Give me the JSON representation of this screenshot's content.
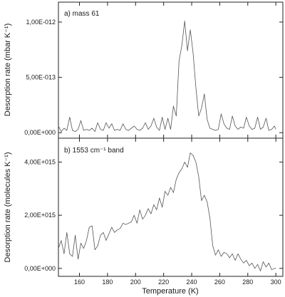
{
  "chart_data": [
    {
      "type": "line",
      "panel_label": "a) mass 61",
      "ylabel": "Desorption rate (mbar K⁻¹)",
      "xlim": [
        145,
        305
      ],
      "ylim": [
        -5e-14,
        1.18e-12
      ],
      "yticks": [
        0,
        5e-13,
        1e-12
      ],
      "ytick_labels": [
        "0,00E+000",
        "5,00E-013",
        "1,00E-012"
      ],
      "series": [
        {
          "x": [
            145,
            147,
            149,
            151,
            153,
            155,
            157,
            159,
            161,
            163,
            165,
            167,
            169,
            171,
            173,
            175,
            177,
            179,
            181,
            183,
            185,
            187,
            189,
            191,
            193,
            195,
            197,
            199,
            201,
            203,
            205,
            207,
            209,
            211,
            213,
            215,
            217,
            219,
            221,
            223,
            225,
            227,
            229,
            231,
            233,
            235,
            237,
            239,
            241,
            243,
            245,
            247,
            249,
            251,
            253,
            255,
            257,
            259,
            261,
            263,
            265,
            267,
            269,
            271,
            273,
            275,
            277,
            279,
            281,
            283,
            285,
            287,
            289,
            291,
            293,
            295,
            297,
            299,
            300
          ],
          "y": [
            0.06,
            0.01,
            0.04,
            0.02,
            0.14,
            0.02,
            0.01,
            0.03,
            0.11,
            0.02,
            0.03,
            0.02,
            0.04,
            0.01,
            0.09,
            0.03,
            0.02,
            0.09,
            0.04,
            0.08,
            0.02,
            0.03,
            0.02,
            0.08,
            0.03,
            0.02,
            0.04,
            0.06,
            0.03,
            0.02,
            0.04,
            0.09,
            0.03,
            0.06,
            0.13,
            0.05,
            0.02,
            0.14,
            0.03,
            0.13,
            0.03,
            0.24,
            0.15,
            0.65,
            0.79,
            1.01,
            0.74,
            0.93,
            0.72,
            0.41,
            0.15,
            0.22,
            0.35,
            0.12,
            0.04,
            0.03,
            0.02,
            0.03,
            0.17,
            0.08,
            0.04,
            0.03,
            0.15,
            0.06,
            0.03,
            0.05,
            0.04,
            0.14,
            0.06,
            0.03,
            0.04,
            0.14,
            0.03,
            0.05,
            0.13,
            0.02,
            0.03,
            0.06,
            0.03
          ]
        }
      ]
    },
    {
      "type": "line",
      "panel_label": "b) 1553 cm⁻¹ band",
      "xlabel": "Temperature (K)",
      "ylabel": "Desorption rate (molecules K⁻¹)",
      "xlim": [
        145,
        305
      ],
      "ylim": [
        -300000000000000.0,
        4900000000000000.0
      ],
      "xticks": [
        160,
        180,
        200,
        220,
        240,
        260,
        280,
        300
      ],
      "yticks": [
        0,
        2000000000000000.0,
        4000000000000000.0
      ],
      "ytick_labels": [
        "0,00E+000",
        "2,00E+015",
        "4,00E+015"
      ],
      "series": [
        {
          "x": [
            145,
            147,
            149,
            151,
            153,
            155,
            157,
            159,
            161,
            163,
            165,
            167,
            169,
            171,
            173,
            175,
            177,
            179,
            181,
            183,
            185,
            187,
            189,
            191,
            193,
            195,
            197,
            199,
            201,
            203,
            205,
            207,
            209,
            211,
            213,
            215,
            217,
            219,
            221,
            223,
            225,
            227,
            229,
            231,
            233,
            235,
            237,
            239,
            241,
            243,
            245,
            247,
            249,
            251,
            253,
            255,
            257,
            259,
            261,
            263,
            265,
            267,
            269,
            271,
            273,
            275,
            277,
            279,
            281,
            283,
            285,
            287,
            289,
            291,
            293,
            295,
            297,
            299,
            300
          ],
          "y": [
            0.75,
            1.05,
            0.55,
            1.35,
            0.55,
            0.45,
            1.25,
            0.35,
            0.95,
            0.75,
            1.05,
            1.55,
            1.6,
            0.7,
            0.85,
            1.25,
            1.35,
            1.05,
            1.3,
            1.55,
            1.35,
            1.45,
            1.5,
            1.7,
            1.65,
            1.7,
            1.75,
            2.0,
            1.7,
            2.2,
            1.85,
            2.0,
            2.25,
            2.05,
            2.4,
            2.2,
            2.65,
            2.3,
            2.9,
            2.75,
            3.05,
            2.85,
            3.35,
            3.6,
            3.75,
            4.0,
            3.8,
            4.35,
            4.25,
            4.0,
            3.45,
            2.55,
            2.75,
            2.5,
            1.9,
            0.85,
            0.5,
            0.7,
            0.45,
            0.6,
            0.55,
            0.4,
            0.55,
            0.3,
            0.55,
            0.35,
            0.2,
            0.3,
            0.1,
            0.2,
            0.0,
            0.15,
            -0.1,
            0.25,
            0.05,
            0.2,
            -0.05,
            0.0,
            0.0
          ]
        }
      ]
    }
  ]
}
